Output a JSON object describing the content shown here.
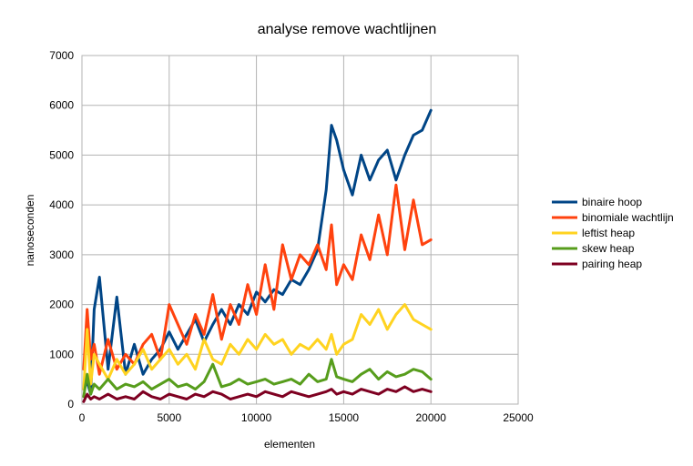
{
  "chart_data": {
    "type": "line",
    "title": "analyse remove wachtlijnen",
    "xlabel": "elementen",
    "ylabel": "nanoseconden",
    "xlim": [
      0,
      25000
    ],
    "ylim": [
      0,
      7000
    ],
    "xticks": [
      0,
      5000,
      10000,
      15000,
      20000,
      25000
    ],
    "yticks": [
      0,
      1000,
      2000,
      3000,
      4000,
      5000,
      6000,
      7000
    ],
    "grid": true,
    "legend_position": "right",
    "x": [
      100,
      300,
      500,
      700,
      1000,
      1500,
      2000,
      2500,
      3000,
      3500,
      4000,
      4500,
      5000,
      5500,
      6000,
      6500,
      7000,
      7500,
      8000,
      8500,
      9000,
      9500,
      10000,
      10500,
      11000,
      11500,
      12000,
      12500,
      13000,
      13500,
      14000,
      14300,
      14600,
      15000,
      15500,
      16000,
      16500,
      17000,
      17500,
      18000,
      18500,
      19000,
      19500,
      20000
    ],
    "series": [
      {
        "name": "binaire hoop",
        "color": "#004586",
        "values": [
          300,
          450,
          200,
          1900,
          2550,
          700,
          2150,
          600,
          1200,
          600,
          900,
          1100,
          1450,
          1100,
          1400,
          1700,
          1250,
          1600,
          1900,
          1600,
          2000,
          1800,
          2250,
          2050,
          2300,
          2200,
          2500,
          2400,
          2700,
          3100,
          4300,
          5600,
          5300,
          4700,
          4200,
          5000,
          4500,
          4900,
          5100,
          4500,
          5000,
          5400,
          5500,
          5900
        ]
      },
      {
        "name": "binomiale wachtlijn",
        "color": "#ff420e",
        "values": [
          700,
          1900,
          900,
          1200,
          600,
          1300,
          700,
          1000,
          800,
          1200,
          1400,
          900,
          2000,
          1600,
          1200,
          1800,
          1400,
          2200,
          1300,
          2000,
          1600,
          2400,
          1800,
          2800,
          1900,
          3200,
          2500,
          3000,
          2800,
          3200,
          2700,
          3600,
          2400,
          2800,
          2500,
          3400,
          2900,
          3800,
          3000,
          4400,
          3100,
          4100,
          3200,
          3300
        ]
      },
      {
        "name": "leftist heap",
        "color": "#ffd320",
        "values": [
          300,
          1500,
          400,
          1000,
          800,
          500,
          900,
          600,
          800,
          1100,
          700,
          900,
          1100,
          800,
          1000,
          700,
          1300,
          900,
          800,
          1200,
          1000,
          1300,
          1100,
          1400,
          1200,
          1300,
          1000,
          1200,
          1100,
          1300,
          1100,
          1400,
          1000,
          1200,
          1300,
          1800,
          1600,
          1900,
          1500,
          1800,
          2000,
          1700,
          1600,
          1500
        ]
      },
      {
        "name": "skew heap",
        "color": "#579d1c",
        "values": [
          150,
          600,
          200,
          400,
          300,
          500,
          300,
          400,
          350,
          450,
          300,
          400,
          500,
          350,
          400,
          300,
          450,
          800,
          350,
          400,
          500,
          400,
          450,
          500,
          400,
          450,
          500,
          400,
          600,
          450,
          500,
          900,
          550,
          500,
          450,
          600,
          700,
          500,
          650,
          550,
          600,
          700,
          650,
          500
        ]
      },
      {
        "name": "pairing heap",
        "color": "#7e0021",
        "values": [
          50,
          200,
          100,
          150,
          100,
          200,
          100,
          150,
          100,
          250,
          150,
          100,
          200,
          150,
          100,
          200,
          150,
          250,
          200,
          100,
          150,
          200,
          150,
          250,
          200,
          150,
          250,
          200,
          150,
          200,
          250,
          300,
          200,
          250,
          200,
          300,
          250,
          200,
          300,
          250,
          350,
          250,
          300,
          250
        ]
      }
    ]
  }
}
